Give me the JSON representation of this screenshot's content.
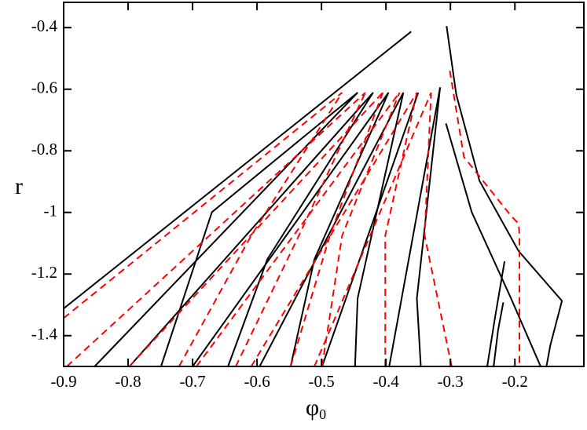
{
  "chart_data": {
    "type": "line",
    "xlabel": "φ",
    "xlabel_sub": "0",
    "ylabel": "r",
    "xlim": [
      -0.9,
      -0.093
    ],
    "ylim": [
      -1.5,
      -0.318
    ],
    "xticks": [
      -0.9,
      -0.8,
      -0.7,
      -0.6,
      -0.5,
      -0.4,
      -0.3,
      -0.2
    ],
    "yticks": [
      -1.4,
      -1.2,
      -1,
      -0.8,
      -0.6,
      -0.4
    ],
    "series": [
      {
        "color": "#000000",
        "dashed": false,
        "x": [
          -0.9,
          -0.361
        ],
        "values": [
          -1.312,
          -0.413
        ]
      },
      {
        "color": "#000000",
        "dashed": false,
        "x": [
          -0.852,
          -0.444
        ],
        "values": [
          -1.5,
          -0.611
        ]
      },
      {
        "color": "#000000",
        "dashed": false,
        "x": [
          -0.798,
          -0.42
        ],
        "values": [
          -1.5,
          -0.611
        ]
      },
      {
        "color": "#000000",
        "dashed": false,
        "x": [
          -0.7,
          -0.396
        ],
        "values": [
          -1.5,
          -0.611
        ]
      },
      {
        "color": "#000000",
        "dashed": false,
        "x": [
          -0.596,
          -0.373
        ],
        "values": [
          -1.5,
          -0.611
        ]
      },
      {
        "color": "#000000",
        "dashed": false,
        "x": [
          -0.499,
          -0.35
        ],
        "values": [
          -1.5,
          -0.611
        ]
      },
      {
        "color": "#000000",
        "dashed": false,
        "x": [
          -0.395,
          -0.316
        ],
        "values": [
          -1.5,
          -0.594
        ]
      },
      {
        "color": "#000000",
        "dashed": false,
        "x": [
          -0.749,
          -0.67,
          -0.444
        ],
        "values": [
          -1.5,
          -0.999,
          -0.611
        ]
      },
      {
        "color": "#000000",
        "dashed": false,
        "x": [
          -0.645,
          -0.584,
          -0.42
        ],
        "values": [
          -1.5,
          -1.152,
          -0.611
        ]
      },
      {
        "color": "#000000",
        "dashed": false,
        "x": [
          -0.548,
          -0.511,
          -0.396
        ],
        "values": [
          -1.5,
          -1.152,
          -0.611
        ]
      },
      {
        "color": "#000000",
        "dashed": false,
        "x": [
          -0.448,
          -0.444,
          -0.373
        ],
        "values": [
          -1.5,
          -1.279,
          -0.611
        ]
      },
      {
        "color": "#000000",
        "dashed": false,
        "x": [
          -0.346,
          -0.352,
          -0.316
        ],
        "values": [
          -1.5,
          -1.279,
          -0.594
        ]
      },
      {
        "color": "#000000",
        "dashed": false,
        "x": [
          -0.306,
          -0.291,
          -0.255,
          -0.194,
          -0.127,
          -0.145,
          -0.151
        ],
        "values": [
          -0.395,
          -0.617,
          -0.897,
          -1.126,
          -1.287,
          -1.432,
          -1.5
        ]
      },
      {
        "color": "#000000",
        "dashed": false,
        "x": [
          -0.307,
          -0.267,
          -0.206,
          -0.16
        ],
        "values": [
          -0.711,
          -0.999,
          -1.279,
          -1.5
        ]
      },
      {
        "color": "#000000",
        "dashed": false,
        "x": [
          -0.243,
          -0.23,
          -0.216
        ],
        "values": [
          -1.5,
          -1.331,
          -1.159
        ]
      },
      {
        "color": "#000000",
        "dashed": false,
        "x": [
          -0.233,
          -0.226,
          -0.218
        ],
        "values": [
          -1.5,
          -1.381,
          -1.292
        ]
      },
      {
        "color": "#ff0000",
        "dashed": true,
        "x": [
          -0.9,
          -0.468
        ],
        "values": [
          -1.343,
          -0.611
        ]
      },
      {
        "color": "#ff0000",
        "dashed": true,
        "x": [
          -0.895,
          -0.432
        ],
        "values": [
          -1.5,
          -0.611
        ]
      },
      {
        "color": "#ff0000",
        "dashed": true,
        "x": [
          -0.798,
          -0.405
        ],
        "values": [
          -1.5,
          -0.611
        ]
      },
      {
        "color": "#ff0000",
        "dashed": true,
        "x": [
          -0.694,
          -0.379
        ],
        "values": [
          -1.5,
          -0.611
        ]
      },
      {
        "color": "#ff0000",
        "dashed": true,
        "x": [
          -0.609,
          -0.352
        ],
        "values": [
          -1.5,
          -0.611
        ]
      },
      {
        "color": "#ff0000",
        "dashed": true,
        "x": [
          -0.511,
          -0.33
        ],
        "values": [
          -1.5,
          -0.611
        ]
      },
      {
        "color": "#ff0000",
        "dashed": true,
        "x": [
          -0.721,
          -0.609,
          -0.468
        ],
        "values": [
          -1.5,
          -1.075,
          -0.611
        ]
      },
      {
        "color": "#ff0000",
        "dashed": true,
        "x": [
          -0.633,
          -0.535,
          -0.432
        ],
        "values": [
          -1.5,
          -1.075,
          -0.611
        ]
      },
      {
        "color": "#ff0000",
        "dashed": true,
        "x": [
          -0.548,
          -0.487,
          -0.405
        ],
        "values": [
          -1.5,
          -1.075,
          -0.611
        ]
      },
      {
        "color": "#ff0000",
        "dashed": true,
        "x": [
          -0.499,
          -0.468,
          -0.379
        ],
        "values": [
          -1.5,
          -1.075,
          -0.611
        ]
      },
      {
        "color": "#ff0000",
        "dashed": true,
        "x": [
          -0.401,
          -0.401,
          -0.352
        ],
        "values": [
          -1.5,
          -1.075,
          -0.611
        ]
      },
      {
        "color": "#ff0000",
        "dashed": true,
        "x": [
          -0.298,
          -0.34,
          -0.33
        ],
        "values": [
          -1.5,
          -1.075,
          -0.611
        ]
      },
      {
        "color": "#ff0000",
        "dashed": true,
        "x": [
          -0.301,
          -0.279,
          -0.206,
          -0.194,
          -0.193,
          -0.193
        ],
        "values": [
          -0.54,
          -0.82,
          -1.011,
          -1.037,
          -1.075,
          -1.5
        ]
      }
    ]
  }
}
